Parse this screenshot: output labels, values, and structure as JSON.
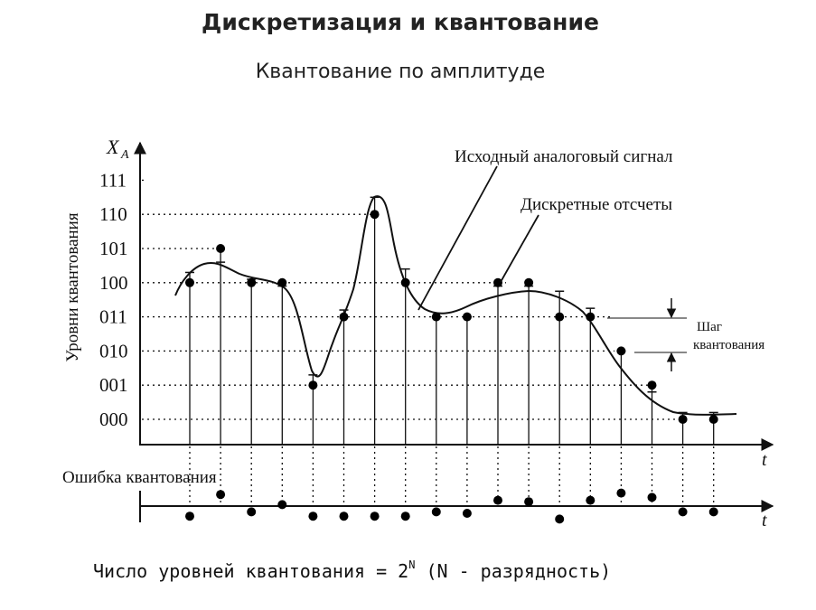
{
  "title": "Дискретизация и квантование",
  "subtitle": "Квантование по амплитуде",
  "formula": {
    "prefix": "Число уровней квантования = 2",
    "exponent": "N",
    "suffix": "  (N - разрядность)"
  },
  "diagram": {
    "y_axis_symbol": "X",
    "y_axis_subscript": "A",
    "y_axis_label": "Уровни квантования",
    "x_axis_label": "t",
    "error_axis_label": "t",
    "error_label": "Ошибка квантования",
    "levels": [
      "000",
      "001",
      "010",
      "011",
      "100",
      "101",
      "110",
      "111"
    ],
    "annotations": {
      "analog_signal": "Исходный аналоговый сигнал",
      "samples": "Дискретные отсчеты",
      "step_line1": "Шаг",
      "step_line2": "квантования"
    },
    "quantized_samples": [
      4,
      5,
      4,
      4,
      1,
      3,
      6,
      4,
      3,
      3,
      4,
      4,
      3,
      3,
      2,
      1,
      0,
      0
    ],
    "analog_at_samples": [
      4.3,
      4.6,
      4.1,
      3.9,
      1.3,
      3.2,
      6.5,
      4.4,
      3.0,
      3.0,
      3.9,
      3.9,
      3.75,
      3.25,
      2.0,
      0.8,
      0.2,
      0.2
    ],
    "quantization_error": [
      -0.7,
      0.8,
      -0.4,
      0.1,
      -0.7,
      -0.7,
      -0.7,
      -0.7,
      -0.4,
      -0.5,
      0.4,
      0.3,
      -0.9,
      0.4,
      0.9,
      0.6,
      -0.4,
      -0.4
    ]
  }
}
